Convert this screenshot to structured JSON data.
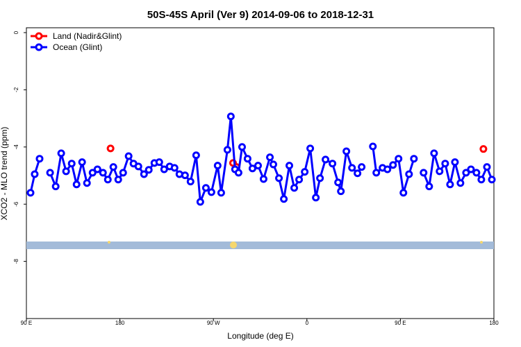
{
  "chart_data": {
    "type": "line",
    "title": "50S-45S April (Ver 9)   2014-09-06 to 2018-12-31",
    "x_label": "Longitude (deg E)",
    "y_label": "XCO2 - MLO trend (ppm)",
    "xlim": [
      90,
      540
    ],
    "ylim": [
      -10,
      0.17
    ],
    "xticks": [
      {
        "value": 90,
        "label": "90 E"
      },
      180,
      {
        "value": 270,
        "label": "90 W"
      },
      {
        "value": 360,
        "label": "0"
      },
      {
        "value": 450,
        "label": "90 E"
      },
      {
        "value": 540,
        "label": "180"
      }
    ],
    "yticks": [
      0,
      -2,
      -4,
      -6,
      -8
    ],
    "legend": "top-left",
    "series": [
      {
        "name": "Land (Nadir&Glint)",
        "color": "#ff0000",
        "line": false,
        "x": [
          171.0,
          288.9,
          292.2,
          529.9
        ],
        "values": [
          -4.05,
          -4.56,
          -4.7,
          -4.07
        ]
      },
      {
        "name": "Ocean (Glint)",
        "color": "#0000ff",
        "line": true,
        "x": [
          94.0,
          98.0,
          102.7,
          107.8,
          112.8,
          118.2,
          123.5,
          128.2,
          133.6,
          138.3,
          143.6,
          148.3,
          153.7,
          158.4,
          163.7,
          168.4,
          173.7,
          178.4,
          183.1,
          188.4,
          193.1,
          197.8,
          203.2,
          207.8,
          213.2,
          217.9,
          222.6,
          227.9,
          232.6,
          237.3,
          242.7,
          248.0,
          253.4,
          257.4,
          262.8,
          268.1,
          274.1,
          277.5,
          283.5,
          286.8,
          290.8,
          294.2,
          297.6,
          302.9,
          307.6,
          313.0,
          318.3,
          324.4,
          327.7,
          333.1,
          337.8,
          343.1,
          347.8,
          352.5,
          357.9,
          363.2,
          368.6,
          372.6,
          377.9,
          384.6,
          390.0,
          392.7,
          398.0,
          403.4,
          408.7,
          412.7,
          418.1,
          423.5,
          426.8,
          432.8,
          437.5,
          442.9,
          448.2,
          452.9,
          458.3,
          463.0,
          467.7,
          472.3,
          477.7,
          482.4,
          487.7,
          493.1,
          497.8,
          502.5,
          507.8,
          513.2,
          517.9,
          523.2,
          527.9,
          533.3,
          538.0
        ],
        "values": [
          -5.6,
          -4.95,
          -4.41,
          null,
          -4.9,
          -5.38,
          -4.22,
          -4.85,
          -4.58,
          -5.31,
          -4.53,
          -5.26,
          -4.9,
          -4.78,
          -4.9,
          -5.14,
          -4.7,
          -5.14,
          -4.9,
          -4.32,
          -4.58,
          -4.68,
          -4.95,
          -4.8,
          -4.56,
          -4.53,
          -4.78,
          -4.68,
          -4.73,
          -4.95,
          -4.99,
          -5.21,
          -4.29,
          -5.92,
          -5.43,
          -5.58,
          -4.65,
          -5.6,
          -4.1,
          -2.93,
          -4.78,
          -4.9,
          -4.0,
          -4.41,
          -4.75,
          -4.65,
          -5.12,
          -4.36,
          -4.61,
          -5.09,
          -5.82,
          -4.65,
          -5.43,
          -5.14,
          -4.87,
          -4.05,
          -5.77,
          -5.09,
          -4.44,
          -4.58,
          -5.24,
          -5.55,
          -4.15,
          -4.73,
          -4.92,
          -4.7,
          null,
          -3.98,
          -4.9,
          -4.73,
          -4.78,
          -4.63,
          -4.41,
          -5.6,
          -4.95,
          -4.41,
          null,
          -4.9,
          -5.38,
          -4.22,
          -4.85,
          -4.58,
          -5.31,
          -4.53,
          -5.26,
          -4.9,
          -4.78,
          -4.9,
          -5.14,
          -4.7,
          -5.14
        ]
      }
    ]
  }
}
